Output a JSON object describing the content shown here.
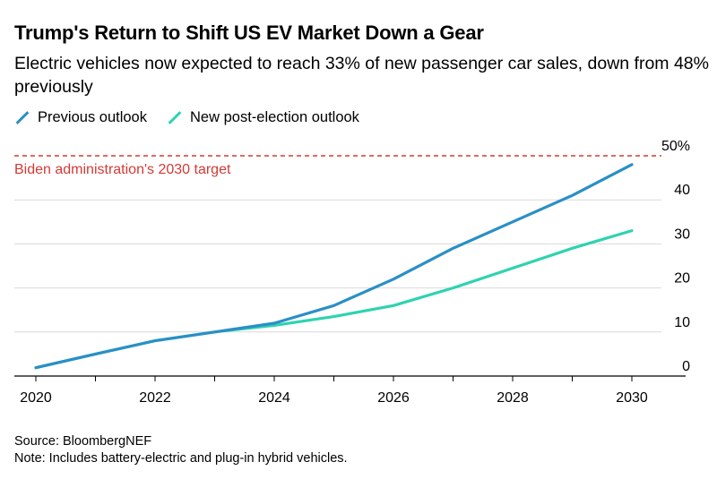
{
  "title": "Trump's Return to Shift US EV Market Down a Gear",
  "subtitle": "Electric vehicles now expected to reach 33% of new passenger car sales, down from 48% previously",
  "colors": {
    "previous": "#2b8fc6",
    "new": "#2ed3b0",
    "target": "#d23a36",
    "grid": "#d9d9d9",
    "axis": "#000000"
  },
  "chart_data": {
    "type": "line",
    "x": [
      2020,
      2021,
      2022,
      2023,
      2024,
      2025,
      2026,
      2027,
      2028,
      2029,
      2030
    ],
    "series": [
      {
        "key": "previous",
        "name": "Previous outlook",
        "values": [
          1.9,
          5.0,
          8.0,
          10.0,
          12.0,
          16.0,
          22.0,
          29.0,
          35.0,
          41.0,
          48.0
        ]
      },
      {
        "key": "new",
        "name": "New post-election outlook",
        "values": [
          1.9,
          5.0,
          8.0,
          10.0,
          11.5,
          13.5,
          16.0,
          20.0,
          24.5,
          29.0,
          33.0
        ]
      }
    ],
    "target": {
      "value": 50,
      "label": "Biden administration's 2030 target"
    },
    "x_ticks": [
      2020,
      2022,
      2024,
      2026,
      2028,
      2030
    ],
    "y_ticks": [
      0,
      10,
      20,
      30,
      40,
      50
    ],
    "y_tick_labels": [
      "0",
      "10",
      "20",
      "30",
      "40",
      "50%"
    ],
    "ylim": [
      0,
      50
    ],
    "xlim": [
      2020,
      2030
    ],
    "grid": "horizontal",
    "legend_position": "top-left"
  },
  "footer": {
    "source": "Source: BloombergNEF",
    "note": "Note: Includes battery-electric and plug-in hybrid vehicles."
  }
}
